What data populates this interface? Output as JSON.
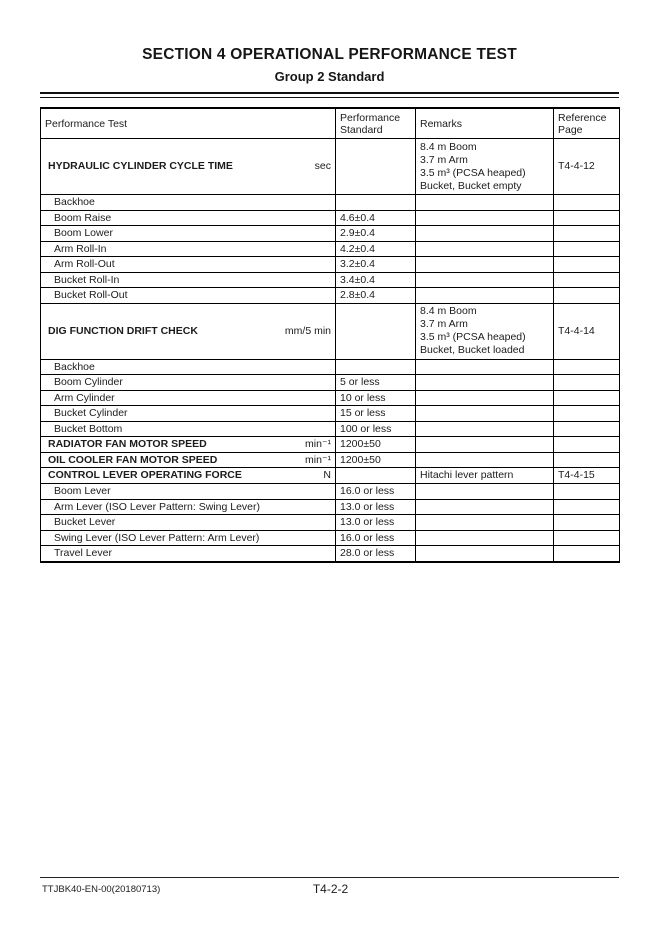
{
  "page": {
    "title": "SECTION 4 OPERATIONAL PERFORMANCE TEST",
    "subtitle": "Group 2 Standard"
  },
  "table": {
    "headers": {
      "test": "Performance Test",
      "standard": "Performance Standard",
      "remarks": "Remarks",
      "reference": "Reference Page"
    },
    "rows": [
      {
        "name": "HYDRAULIC CYLINDER CYCLE TIME",
        "unit": "sec",
        "remarks": "8.4 m Boom\n3.7 m Arm\n3.5 m³ (PCSA heaped)\nBucket, Bucket empty",
        "ref": "T4-4-12"
      },
      {
        "name": "Backhoe"
      },
      {
        "name": "Boom Raise",
        "standard": "4.6±0.4"
      },
      {
        "name": "Boom Lower",
        "standard": "2.9±0.4"
      },
      {
        "name": "Arm Roll-In",
        "standard": "4.2±0.4"
      },
      {
        "name": "Arm Roll-Out",
        "standard": "3.2±0.4"
      },
      {
        "name": "Bucket Roll-In",
        "standard": "3.4±0.4"
      },
      {
        "name": "Bucket Roll-Out",
        "standard": "2.8±0.4"
      },
      {
        "name": "DIG FUNCTION DRIFT CHECK",
        "unit": "mm/5 min",
        "remarks": "8.4 m Boom\n3.7 m Arm\n3.5 m³ (PCSA heaped)\nBucket, Bucket loaded",
        "ref": "T4-4-14"
      },
      {
        "name": "Backhoe"
      },
      {
        "name": "Boom Cylinder",
        "standard": "5 or less"
      },
      {
        "name": "Arm Cylinder",
        "standard": "10 or less"
      },
      {
        "name": "Bucket Cylinder",
        "standard": "15 or less"
      },
      {
        "name": "Bucket Bottom",
        "standard": "100 or less"
      },
      {
        "name": "RADIATOR FAN MOTOR SPEED",
        "unit": "min⁻¹",
        "standard": "1200±50"
      },
      {
        "name": "OIL COOLER FAN MOTOR SPEED",
        "unit": "min⁻¹",
        "standard": "1200±50"
      },
      {
        "name": "CONTROL LEVER OPERATING FORCE",
        "unit": "N",
        "remarks": "Hitachi lever pattern",
        "ref": "T4-4-15"
      },
      {
        "name": "Boom Lever",
        "standard": "16.0 or less"
      },
      {
        "name": "Arm Lever (ISO Lever Pattern: Swing Lever)",
        "standard": "13.0 or less"
      },
      {
        "name": "Bucket Lever",
        "standard": "13.0 or less"
      },
      {
        "name": "Swing Lever (ISO Lever Pattern: Arm Lever)",
        "standard": "16.0 or less"
      },
      {
        "name": "Travel Lever",
        "standard": "28.0 or less"
      }
    ]
  },
  "footer": {
    "doc_number": "TTJBK40-EN-00(20180713)",
    "page_number": "T4-2-2"
  }
}
